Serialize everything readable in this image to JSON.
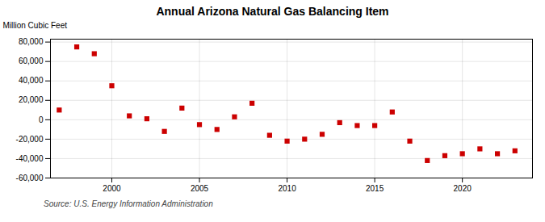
{
  "chart_data": {
    "type": "scatter",
    "title": "Annual Arizona Natural Gas Balancing Item",
    "ylabel": "Million Cubic Feet",
    "caption": "Source: U.S. Energy Information Administration",
    "x": [
      1997,
      1998,
      1999,
      2000,
      2001,
      2002,
      2003,
      2004,
      2005,
      2006,
      2007,
      2008,
      2009,
      2010,
      2011,
      2012,
      2013,
      2014,
      2015,
      2016,
      2017,
      2018,
      2019,
      2020,
      2021,
      2022,
      2023
    ],
    "values": [
      10000,
      75000,
      68000,
      35000,
      4000,
      1000,
      -12000,
      12000,
      -5000,
      -10000,
      3000,
      17000,
      -16000,
      -22000,
      -20000,
      -15000,
      -3000,
      -6000,
      -6000,
      8000,
      -22000,
      -42000,
      -37000,
      -35000,
      -30000,
      -35000,
      -32000
    ],
    "color": "#cc0000",
    "marker": "square",
    "xlim": [
      1996.5,
      2024
    ],
    "xticks": [
      2000,
      2005,
      2010,
      2015,
      2020
    ],
    "ylim": [
      -60000,
      83000
    ],
    "yticks": [
      {
        "value": -60000,
        "label": "-60,000"
      },
      {
        "value": -40000,
        "label": "-40,000"
      },
      {
        "value": -20000,
        "label": "-20,000"
      },
      0,
      {
        "value": 20000,
        "label": "20,000"
      },
      {
        "value": 40000,
        "label": "40,000"
      },
      {
        "value": 60000,
        "label": "60,000"
      },
      {
        "value": 80000,
        "label": "80,000"
      }
    ],
    "grid": true
  }
}
